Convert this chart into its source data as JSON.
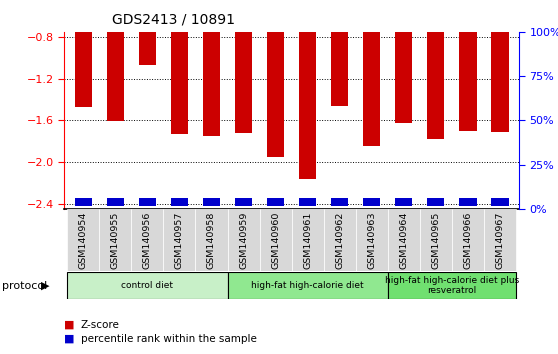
{
  "title": "GDS2413 / 10891",
  "categories": [
    "GSM140954",
    "GSM140955",
    "GSM140956",
    "GSM140957",
    "GSM140958",
    "GSM140959",
    "GSM140960",
    "GSM140961",
    "GSM140962",
    "GSM140963",
    "GSM140964",
    "GSM140965",
    "GSM140966",
    "GSM140967"
  ],
  "zscore": [
    -1.47,
    -1.61,
    -1.07,
    -1.73,
    -1.75,
    -1.72,
    -1.95,
    -2.16,
    -1.46,
    -1.85,
    -1.63,
    -1.78,
    -1.7,
    -1.71
  ],
  "percentile_raw": [
    3,
    3,
    8,
    3,
    3,
    3,
    3,
    3,
    3,
    3,
    3,
    3,
    3,
    3
  ],
  "ylim": [
    -2.45,
    -0.75
  ],
  "yticks_left": [
    -2.4,
    -2.0,
    -1.6,
    -1.2,
    -0.8
  ],
  "yticks_right_pct": [
    0,
    25,
    50,
    75,
    100
  ],
  "bar_color": "#cc0000",
  "percentile_color": "#0000cc",
  "background_color": "#ffffff",
  "label_bg": "#d8d8d8",
  "protocol_groups": [
    {
      "label": "control diet",
      "start": 0,
      "end": 4,
      "color": "#c8f0c8"
    },
    {
      "label": "high-fat high-calorie diet",
      "start": 5,
      "end": 9,
      "color": "#90e890"
    },
    {
      "label": "high-fat high-calorie diet plus\nresveratrol",
      "start": 10,
      "end": 13,
      "color": "#70e070"
    }
  ],
  "legend_zscore": "Z-score",
  "legend_percentile": "percentile rank within the sample",
  "xlabel_protocol": "protocol"
}
